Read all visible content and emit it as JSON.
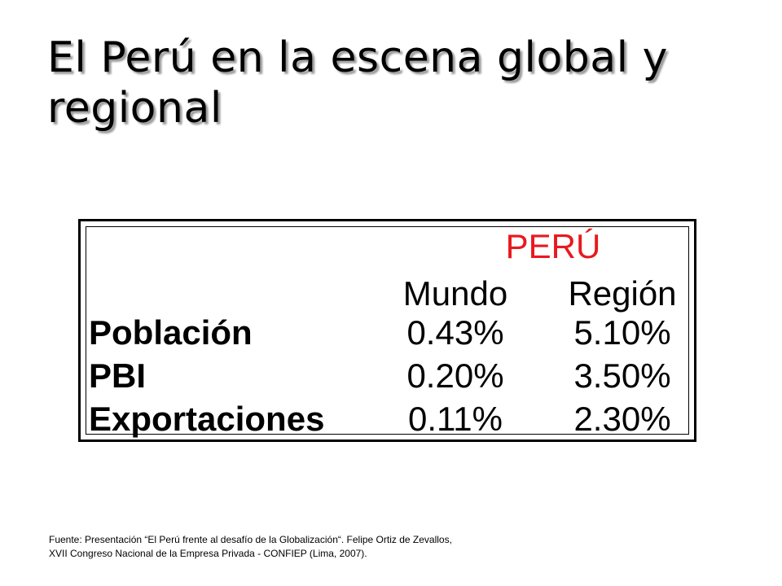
{
  "slide": {
    "title_line1": "El Perú en la escena global y",
    "title_line2": "regional"
  },
  "table": {
    "country_header": "PERÚ",
    "column_headers": [
      "Mundo",
      "Región"
    ],
    "rows": [
      {
        "label": "Población",
        "values": [
          "0.43%",
          "5.10%"
        ]
      },
      {
        "label": "PBI",
        "values": [
          "0.20%",
          "3.50%"
        ]
      },
      {
        "label": "Exportaciones",
        "values": [
          "0.11%",
          "2.30%"
        ]
      }
    ]
  },
  "source": {
    "line1": "Fuente: Presentación “El Perú frente al desafío de la Globalización“. Felipe Ortiz de Zevallos,",
    "line2": "XVII Congreso Nacional de la Empresa Privada - CONFIEP (Lima, 2007)."
  },
  "colors": {
    "country_header": "#e8191f",
    "title_shadow": "#9a9a9a"
  }
}
